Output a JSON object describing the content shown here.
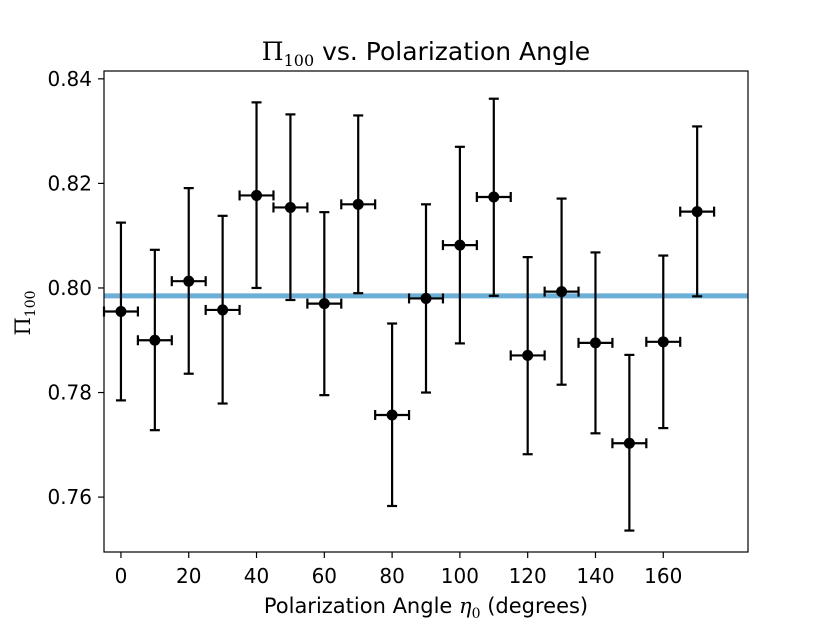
{
  "chart_data": {
    "type": "scatter",
    "title_symbol": "Π",
    "title_subscript": "100",
    "title_text": " vs. Polarization Angle",
    "xlabel_text": "Polarization Angle ",
    "xlabel_symbol": "η",
    "xlabel_subscript": "0",
    "xlabel_suffix": " (degrees)",
    "ylabel_symbol": "Π",
    "ylabel_subscript": "100",
    "xlim": [
      -5,
      185
    ],
    "ylim": [
      0.7495,
      0.8415
    ],
    "x_ticks": [
      0,
      20,
      40,
      60,
      80,
      100,
      120,
      140,
      160
    ],
    "x_tick_labels": [
      "0",
      "20",
      "40",
      "60",
      "80",
      "100",
      "120",
      "140",
      "160"
    ],
    "y_ticks": [
      0.76,
      0.78,
      0.8,
      0.82,
      0.84
    ],
    "y_tick_labels": [
      "0.76",
      "0.78",
      "0.80",
      "0.82",
      "0.84"
    ],
    "x_error": 5,
    "reference_line": {
      "y": 0.7985,
      "color": "#6baed6"
    },
    "marker_color": "#000000",
    "points": [
      {
        "x": 0,
        "y": 0.7955,
        "ylow": 0.7785,
        "yhigh": 0.8125
      },
      {
        "x": 10,
        "y": 0.79,
        "ylow": 0.7728,
        "yhigh": 0.8073
      },
      {
        "x": 20,
        "y": 0.8013,
        "ylow": 0.7836,
        "yhigh": 0.8191
      },
      {
        "x": 30,
        "y": 0.7958,
        "ylow": 0.7779,
        "yhigh": 0.8138
      },
      {
        "x": 40,
        "y": 0.8177,
        "ylow": 0.8,
        "yhigh": 0.8355
      },
      {
        "x": 50,
        "y": 0.8154,
        "ylow": 0.7977,
        "yhigh": 0.8332
      },
      {
        "x": 60,
        "y": 0.797,
        "ylow": 0.7795,
        "yhigh": 0.8145
      },
      {
        "x": 70,
        "y": 0.816,
        "ylow": 0.799,
        "yhigh": 0.833
      },
      {
        "x": 80,
        "y": 0.7757,
        "ylow": 0.7583,
        "yhigh": 0.7932
      },
      {
        "x": 90,
        "y": 0.798,
        "ylow": 0.78,
        "yhigh": 0.816
      },
      {
        "x": 100,
        "y": 0.8082,
        "ylow": 0.7894,
        "yhigh": 0.827
      },
      {
        "x": 110,
        "y": 0.8174,
        "ylow": 0.7985,
        "yhigh": 0.8362
      },
      {
        "x": 120,
        "y": 0.7871,
        "ylow": 0.7682,
        "yhigh": 0.8059
      },
      {
        "x": 130,
        "y": 0.7993,
        "ylow": 0.7815,
        "yhigh": 0.8171
      },
      {
        "x": 140,
        "y": 0.7895,
        "ylow": 0.7722,
        "yhigh": 0.8068
      },
      {
        "x": 150,
        "y": 0.7703,
        "ylow": 0.7536,
        "yhigh": 0.7872
      },
      {
        "x": 160,
        "y": 0.7897,
        "ylow": 0.7732,
        "yhigh": 0.8062
      },
      {
        "x": 170,
        "y": 0.8146,
        "ylow": 0.7984,
        "yhigh": 0.8309
      }
    ]
  }
}
